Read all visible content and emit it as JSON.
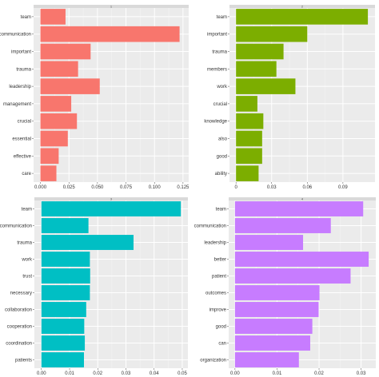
{
  "chart_data": [
    {
      "type": "bar",
      "orientation": "horizontal",
      "panel_label": "1",
      "color": "#F8766D",
      "categories": [
        "team",
        "communication",
        "important",
        "trauma",
        "leadership",
        "management",
        "crucial",
        "essential",
        "effective",
        "care"
      ],
      "values": [
        0.022,
        0.122,
        0.044,
        0.033,
        0.052,
        0.027,
        0.032,
        0.024,
        0.016,
        0.014
      ],
      "xlim": [
        -0.006,
        0.13
      ],
      "xticks": [
        0.0,
        0.025,
        0.05,
        0.075,
        0.1,
        0.125
      ],
      "xtick_labels": [
        "0.000",
        "0.025",
        "0.050",
        "0.075",
        "0.100",
        "0.125"
      ],
      "grid": true
    },
    {
      "type": "bar",
      "orientation": "horizontal",
      "panel_label": "2",
      "color": "#7CAE00",
      "categories": [
        "team",
        "important",
        "trauma",
        "members",
        "work",
        "crucial",
        "knowledge",
        "also",
        "good",
        "ability"
      ],
      "values": [
        0.111,
        0.06,
        0.04,
        0.034,
        0.05,
        0.018,
        0.023,
        0.022,
        0.022,
        0.019
      ],
      "xlim": [
        -0.0055,
        0.117
      ],
      "xticks": [
        0.0,
        0.03,
        0.06,
        0.09
      ],
      "xtick_labels": [
        "0",
        "0.03",
        "0.06",
        "0.09"
      ],
      "grid": true
    },
    {
      "type": "bar",
      "orientation": "horizontal",
      "panel_label": "3",
      "color": "#00BFC4",
      "categories": [
        "team",
        "communication",
        "trauma",
        "work",
        "trust",
        "necessary",
        "collaboration",
        "cooperation",
        "coordination",
        "patients"
      ],
      "values": [
        0.0495,
        0.0167,
        0.0327,
        0.0172,
        0.0173,
        0.0172,
        0.0159,
        0.0152,
        0.0154,
        0.0151
      ],
      "xlim": [
        -0.0025,
        0.052
      ],
      "xticks": [
        0.0,
        0.01,
        0.02,
        0.03,
        0.04,
        0.05
      ],
      "xtick_labels": [
        "0.00",
        "0.01",
        "0.02",
        "0.03",
        "0.04",
        "0.05"
      ],
      "grid": true
    },
    {
      "type": "bar",
      "orientation": "horizontal",
      "panel_label": "4",
      "color": "#C77CFF",
      "categories": [
        "team",
        "communication",
        "leadership",
        "better",
        "patient",
        "outcomes",
        "improve",
        "good",
        "can",
        "organization"
      ],
      "values": [
        0.0305,
        0.0228,
        0.0162,
        0.0318,
        0.0275,
        0.0201,
        0.0199,
        0.0184,
        0.0179,
        0.0152
      ],
      "xlim": [
        -0.0015,
        0.0335
      ],
      "xticks": [
        0.0,
        0.01,
        0.02,
        0.03
      ],
      "xtick_labels": [
        "0.00",
        "0.01",
        "0.02",
        "0.03"
      ],
      "grid": true
    }
  ]
}
